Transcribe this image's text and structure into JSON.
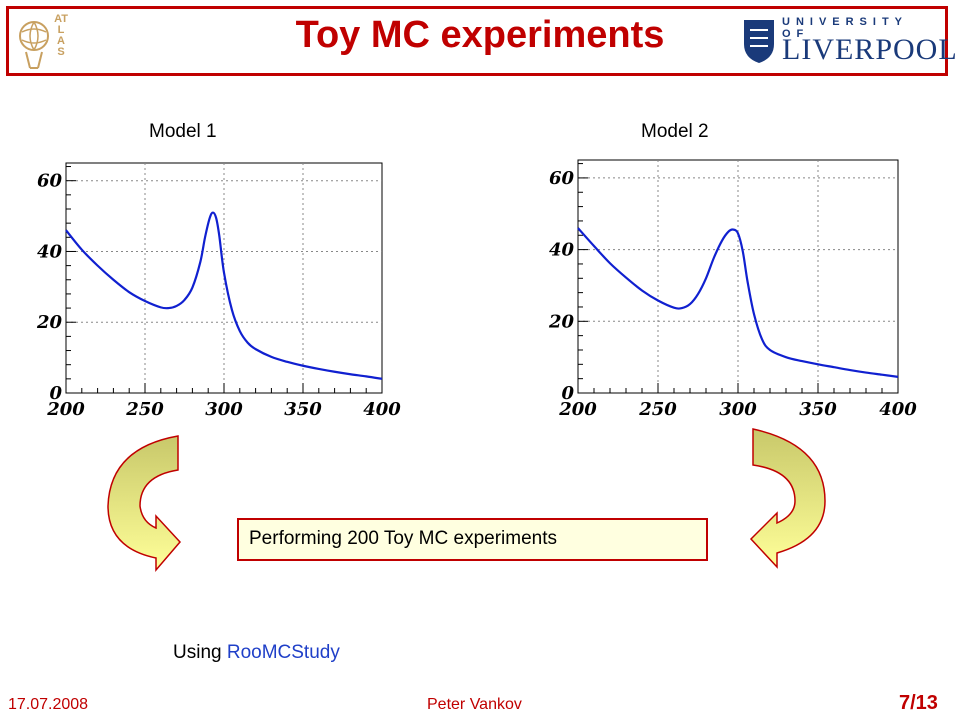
{
  "slide": {
    "title": "Toy MC experiments",
    "university_logo_text_top": "UNIVERSITY OF",
    "university_logo_text_main": "LIVERPOOL",
    "atlas_logo_text": "ATLAS",
    "model1_label": "Model 1",
    "model2_label": "Model 2",
    "experiments_text": "Performing 200 Toy MC experiments",
    "using_prefix": "Using",
    "using_tool": "RooMCStudy",
    "footer_date": "17.07.2008",
    "footer_author": "Peter Vankov",
    "page_number": "7/13"
  },
  "colors": {
    "accent": "#c00000",
    "curve": "#1020d0",
    "arrow_fill_top": "#c8c86a",
    "arrow_fill_bottom": "#ffff99",
    "link": "#1f3fc8"
  },
  "chart_data": [
    {
      "type": "line",
      "title": "Model 1",
      "xlim": [
        200,
        400
      ],
      "ylim": [
        0,
        65
      ],
      "xticks": [
        "200",
        "250",
        "300",
        "350",
        "400"
      ],
      "yticks": [
        "0",
        "20",
        "40",
        "60"
      ],
      "grid": true,
      "series": [
        {
          "x": [
            200,
            210,
            220,
            230,
            240,
            250,
            260,
            265,
            270,
            275,
            280,
            285,
            288,
            291,
            293,
            295,
            297,
            300,
            305,
            310,
            315,
            320,
            330,
            340,
            350,
            360,
            370,
            380,
            390,
            400
          ],
          "values": [
            46,
            40.5,
            36,
            32,
            28.5,
            26,
            24.2,
            24,
            24.6,
            26.3,
            29.8,
            37,
            44,
            49.5,
            51,
            49.5,
            44.5,
            34,
            23.5,
            17.5,
            14.2,
            12.4,
            10.2,
            8.8,
            7.7,
            6.8,
            6,
            5.3,
            4.7,
            4
          ]
        }
      ]
    },
    {
      "type": "line",
      "title": "Model 2",
      "xlim": [
        200,
        400
      ],
      "ylim": [
        0,
        65
      ],
      "xticks": [
        "200",
        "250",
        "300",
        "350",
        "400"
      ],
      "yticks": [
        "0",
        "20",
        "40",
        "60"
      ],
      "grid": true,
      "series": [
        {
          "x": [
            200,
            210,
            220,
            230,
            240,
            250,
            260,
            265,
            270,
            275,
            280,
            285,
            290,
            294,
            297,
            300,
            303,
            306,
            310,
            315,
            320,
            330,
            340,
            350,
            360,
            370,
            380,
            390,
            400
          ],
          "values": [
            46,
            41,
            36.2,
            32.2,
            28.6,
            25.8,
            23.8,
            23.7,
            24.8,
            27.6,
            32,
            37.8,
            42.5,
            45,
            45.6,
            44.5,
            39.5,
            31,
            22,
            15,
            12,
            10,
            8.9,
            8,
            7.2,
            6.4,
            5.7,
            5.1,
            4.5
          ]
        }
      ]
    }
  ]
}
